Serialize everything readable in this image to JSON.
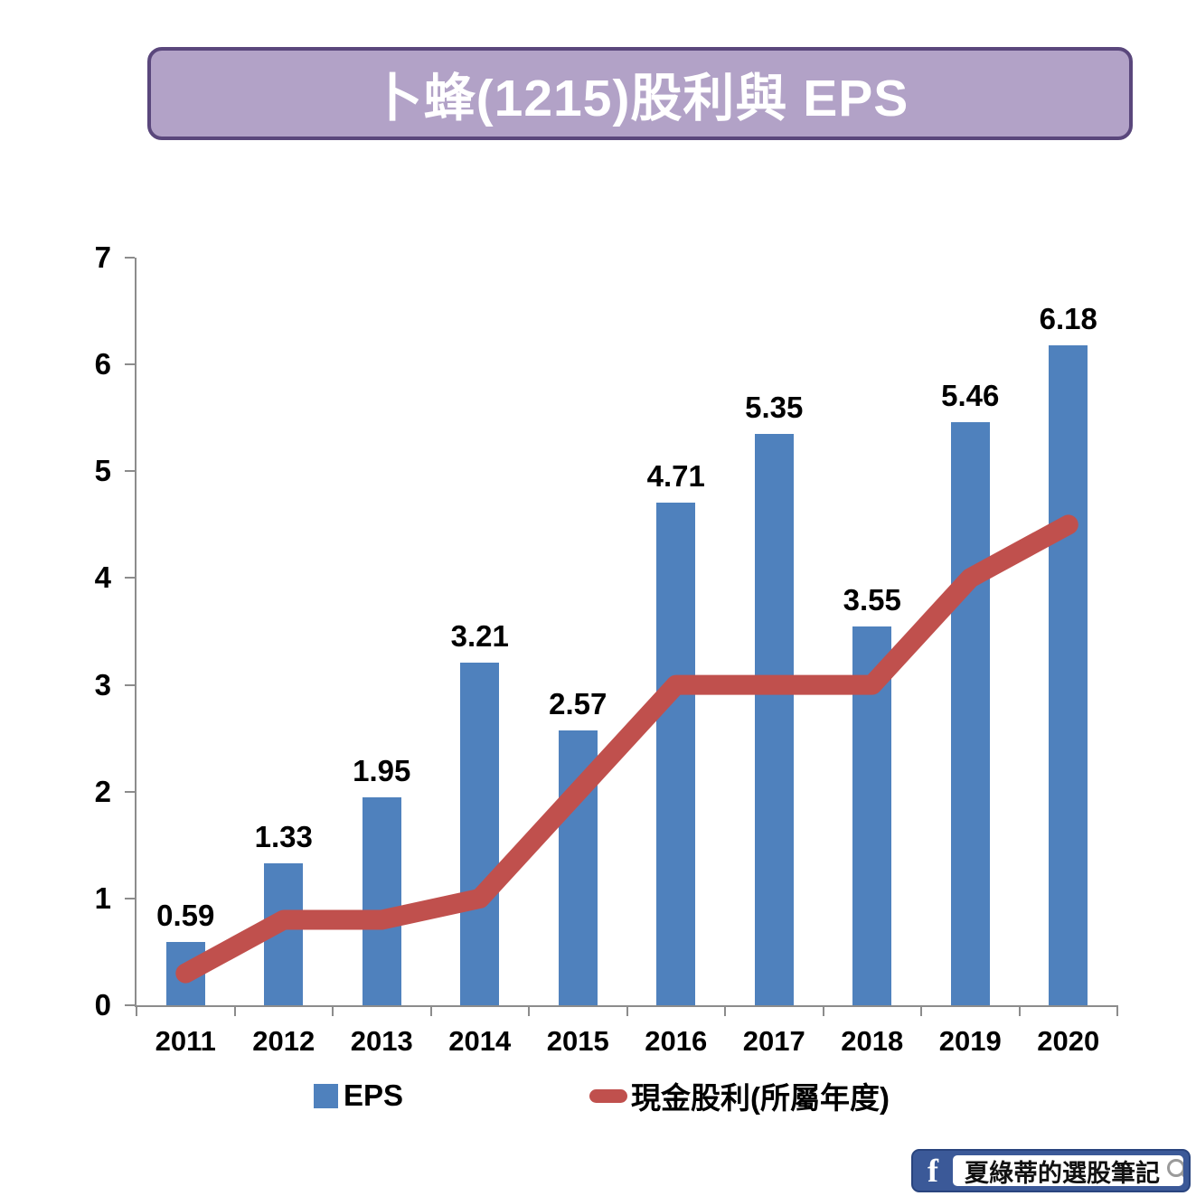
{
  "title": {
    "text": "卜蜂(1215)股利與 EPS"
  },
  "chart_data": {
    "type": "bar",
    "subtype": "combo-bar-line",
    "title": "卜蜂(1215)股利與 EPS",
    "categories": [
      "2011",
      "2012",
      "2013",
      "2014",
      "2015",
      "2016",
      "2017",
      "2018",
      "2019",
      "2020"
    ],
    "series": [
      {
        "name": "EPS",
        "type": "bar",
        "color": "#4F81BD",
        "values": [
          0.59,
          1.33,
          1.95,
          3.21,
          2.57,
          4.71,
          5.35,
          3.55,
          5.46,
          6.18
        ],
        "data_labels": [
          "0.59",
          "1.33",
          "1.95",
          "3.21",
          "2.57",
          "4.71",
          "5.35",
          "3.55",
          "5.46",
          "6.18"
        ]
      },
      {
        "name": "現金股利(所屬年度)",
        "type": "line",
        "color": "#C0504D",
        "values": [
          0.3,
          0.8,
          0.8,
          1.0,
          2.0,
          3.0,
          3.0,
          3.0,
          4.0,
          4.5
        ]
      }
    ],
    "xlabel": "",
    "ylabel": "",
    "ylim": [
      0,
      7
    ],
    "yticks": [
      0,
      1,
      2,
      3,
      4,
      5,
      6,
      7
    ],
    "grid": false,
    "legend_position": "bottom"
  },
  "footer": {
    "facebook_f": "f",
    "page_name": "夏綠蒂的選股筆記"
  },
  "colors": {
    "bar": "#4F81BD",
    "line": "#C0504D",
    "banner_fill": "#B2A2C7",
    "banner_border": "#5A477C",
    "axis": "#8C8C8C",
    "facebook_blue": "#3B5998"
  }
}
